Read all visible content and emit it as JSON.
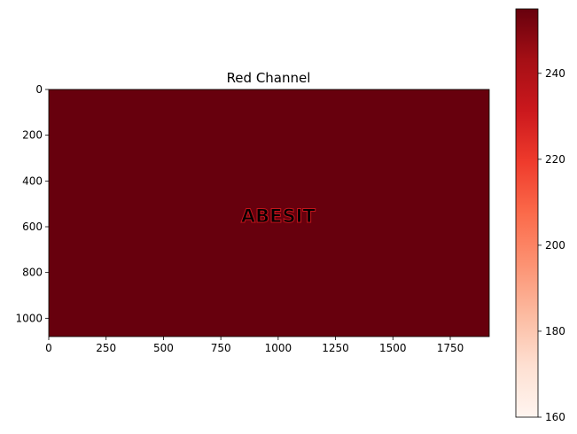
{
  "chart_data": {
    "type": "heatmap",
    "title": "Red Channel",
    "xlabel": "",
    "ylabel": "",
    "xlim": [
      0,
      1920
    ],
    "ylim": [
      1080,
      0
    ],
    "x_ticks": [
      0,
      250,
      500,
      750,
      1000,
      1250,
      1500,
      1750
    ],
    "y_ticks": [
      0,
      200,
      400,
      600,
      800,
      1000
    ],
    "background_value": 255,
    "background_color": "#67000d",
    "overlay_text": "ABESIT",
    "overlay_center": [
      1000,
      550
    ],
    "overlay_text_color": "#fb4b37",
    "overlay_outline_color": "#c3151c",
    "colorbar": {
      "cmap": "Reds",
      "range": [
        160,
        255
      ],
      "ticks": [
        160,
        180,
        200,
        220,
        240
      ]
    }
  }
}
